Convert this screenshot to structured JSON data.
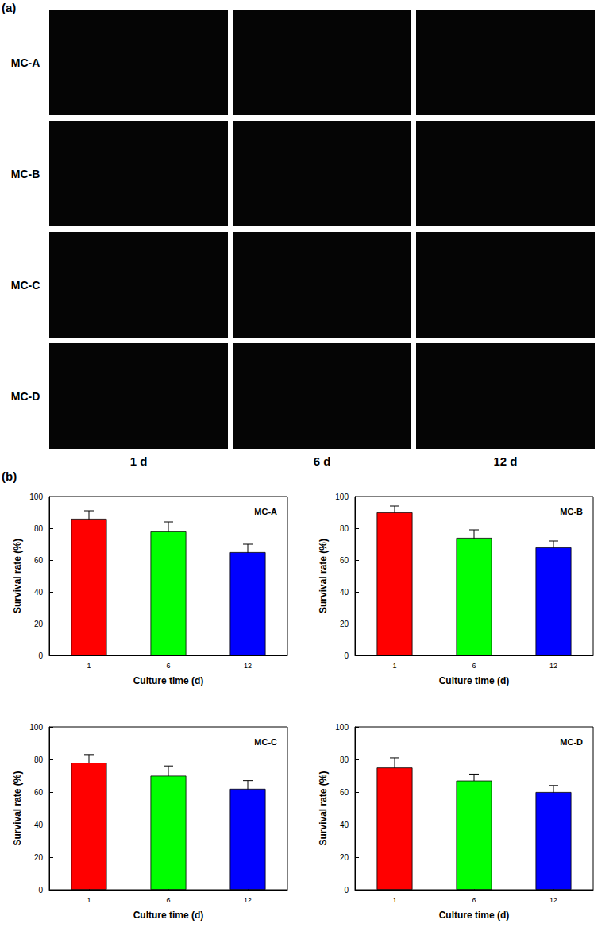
{
  "panel_labels": [
    "(a)",
    "(b)"
  ],
  "micrographs": {
    "rows": [
      "MC-A",
      "MC-B",
      "MC-C",
      "MC-D"
    ],
    "columns": [
      "1 d",
      "6 d",
      "12 d"
    ]
  },
  "chart_data": [
    {
      "type": "bar",
      "title": "MC-A",
      "x_label": "Culture time (d)",
      "y_label": "Survival rate (%)",
      "categories": [
        "1",
        "6",
        "12"
      ],
      "values": [
        86,
        78,
        65
      ],
      "errors": [
        5,
        6,
        5
      ],
      "colors": [
        "#ff0000",
        "#00ff00",
        "#0000ff"
      ],
      "ylim": [
        0,
        100
      ],
      "yticks": [
        0,
        20,
        40,
        60,
        80,
        100
      ],
      "grid": false
    },
    {
      "type": "bar",
      "title": "MC-B",
      "x_label": "Culture time (d)",
      "y_label": "Survival rate (%)",
      "categories": [
        "1",
        "6",
        "12"
      ],
      "values": [
        90,
        74,
        68
      ],
      "errors": [
        4,
        5,
        4
      ],
      "colors": [
        "#ff0000",
        "#00ff00",
        "#0000ff"
      ],
      "ylim": [
        0,
        100
      ],
      "yticks": [
        0,
        20,
        40,
        60,
        80,
        100
      ],
      "grid": false
    },
    {
      "type": "bar",
      "title": "MC-C",
      "x_label": "Culture time (d)",
      "y_label": "Survival rate (%)",
      "categories": [
        "1",
        "6",
        "12"
      ],
      "values": [
        78,
        70,
        62
      ],
      "errors": [
        5,
        6,
        5
      ],
      "colors": [
        "#ff0000",
        "#00ff00",
        "#0000ff"
      ],
      "ylim": [
        0,
        100
      ],
      "yticks": [
        0,
        20,
        40,
        60,
        80,
        100
      ],
      "grid": false
    },
    {
      "type": "bar",
      "title": "MC-D",
      "x_label": "Culture time (d)",
      "y_label": "Survival rate (%)",
      "categories": [
        "1",
        "6",
        "12"
      ],
      "values": [
        75,
        67,
        60
      ],
      "errors": [
        6,
        4,
        4
      ],
      "colors": [
        "#ff0000",
        "#00ff00",
        "#0000ff"
      ],
      "ylim": [
        0,
        100
      ],
      "yticks": [
        0,
        20,
        40,
        60,
        80,
        100
      ],
      "grid": false
    }
  ]
}
